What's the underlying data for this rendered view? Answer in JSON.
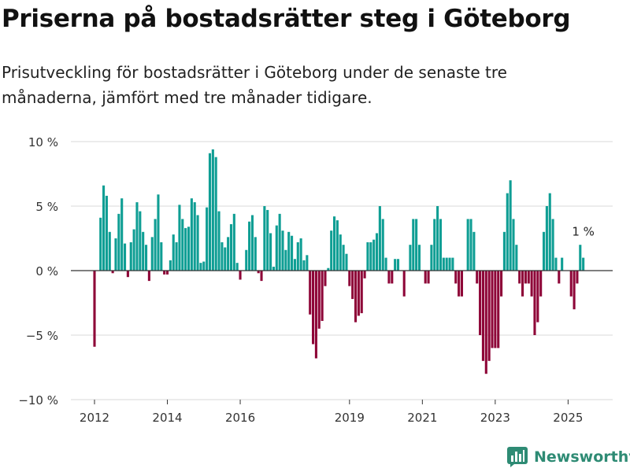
{
  "header": {
    "title": "Priserna på bostadsrätter steg i Göteborg",
    "subtitle": "Prisutveckling för bostadsrätter i Göteborg under de senaste tre månaderna, jämfört med tre månader tidigare."
  },
  "brand": {
    "name": "Newsworthy",
    "icon": "bar-chart-logo-icon",
    "color": "#2e8b74"
  },
  "colors": {
    "positive": "#0f9e94",
    "negative": "#8e0638",
    "grid": "#d9d9d9",
    "zero_line": "#333333"
  },
  "chart_data": {
    "type": "bar",
    "title": "Priserna på bostadsrätter steg i Göteborg",
    "ylabel": "",
    "xlabel": "",
    "ylim": [
      -10,
      10
    ],
    "yticks": [
      10,
      5,
      0,
      -5,
      -10
    ],
    "ytick_labels": [
      "10 %",
      "5 %",
      "0 %",
      "−5 %",
      "−10 %"
    ],
    "xticks": [
      2012,
      2014,
      2016,
      2019,
      2021,
      2023,
      2025
    ],
    "x_start": "2012-01",
    "x_end": "2025-06",
    "frequency": "monthly",
    "annotation": {
      "label": "1 %",
      "x": "2025-06",
      "y": 1.0
    },
    "series": [
      {
        "values": [
          -5.9,
          0,
          4.1,
          6.6,
          5.8,
          3.0,
          -0.2,
          2.5,
          4.4,
          5.6,
          2.1,
          -0.5,
          2.2,
          3.2,
          5.3,
          4.6,
          3.0,
          2.0,
          -0.8,
          2.6,
          4.0,
          5.9,
          2.2,
          -0.3,
          -0.3,
          0.8,
          2.8,
          2.2,
          5.1,
          4.0,
          3.3,
          3.4,
          5.6,
          5.3,
          4.3,
          0.6,
          0.7,
          4.9,
          9.1,
          9.4,
          8.8,
          4.6,
          2.2,
          1.8,
          2.6,
          3.6,
          4.4,
          0.6,
          -0.7,
          0,
          1.6,
          3.8,
          4.3,
          2.6,
          -0.2,
          -0.8,
          5.0,
          4.7,
          2.9,
          0.3,
          3.5,
          4.4,
          3.1,
          1.6,
          3.0,
          2.7,
          0.9,
          2.2,
          2.5,
          0.8,
          1.2,
          -3.4,
          -5.7,
          -6.8,
          -4.5,
          -3.9,
          -1.2,
          0.2,
          3.1,
          4.2,
          3.9,
          2.8,
          2.0,
          1.3,
          -1.2,
          -2.2,
          -4.0,
          -3.5,
          -3.3,
          -0.6,
          2.2,
          2.2,
          2.4,
          2.9,
          5.0,
          4.0,
          1.0,
          -1.0,
          -1.0,
          0.9,
          0.9,
          0,
          -2.0,
          0,
          2.0,
          4.0,
          4.0,
          2.0,
          0,
          -1.0,
          -1.0,
          2.0,
          4.0,
          5.0,
          4.0,
          1.0,
          1.0,
          1.0,
          1.0,
          -1.0,
          -2.0,
          -2.0,
          0,
          4.0,
          4.0,
          3.0,
          -1.0,
          -5.0,
          -7.0,
          -8.0,
          -7.0,
          -6.0,
          -6.0,
          -6.0,
          -2.0,
          3.0,
          6.0,
          7.0,
          4.0,
          2.0,
          -1.0,
          -2.0,
          -1.0,
          -1.0,
          -2.0,
          -5.0,
          -4.0,
          -2.0,
          3.0,
          5.0,
          6.0,
          4.0,
          1.0,
          -1.0,
          1.0,
          0,
          0,
          -2.0,
          -3.0,
          -1.0,
          2.0,
          1.0
        ]
      }
    ]
  }
}
